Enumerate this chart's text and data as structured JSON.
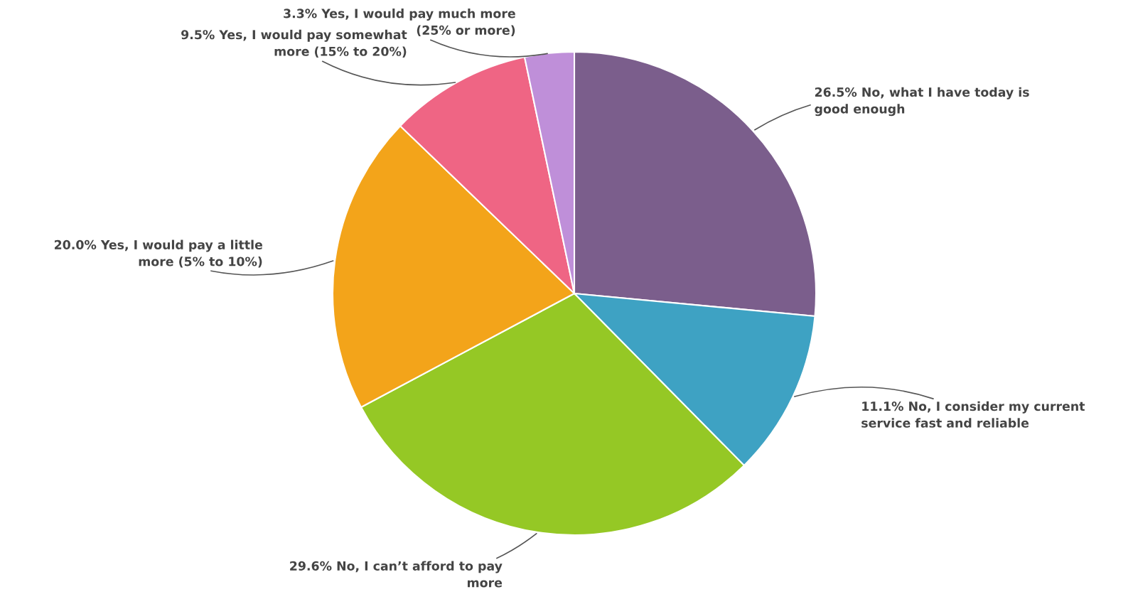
{
  "chart_data": {
    "type": "pie",
    "categories": [
      "No, what I have today is\ngood enough",
      "No, I consider my current\nservice fast and reliable",
      "No, I can’t afford to pay\nmore",
      "Yes, I would pay a little\nmore (5% to 10%)",
      "Yes, I would pay somewhat\nmore (15% to 20%)",
      "Yes, I would pay much more\n(25% or more)"
    ],
    "values": [
      26.5,
      11.1,
      29.6,
      20.0,
      9.5,
      3.3
    ],
    "value_labels": [
      "26.5%",
      "11.1%",
      "29.6%",
      "20.0%",
      "9.5%",
      "3.3%"
    ],
    "colors": [
      "#7b5e8c",
      "#3ea2c3",
      "#95c825",
      "#f3a41a",
      "#ef6584",
      "#bf8fd9"
    ]
  }
}
